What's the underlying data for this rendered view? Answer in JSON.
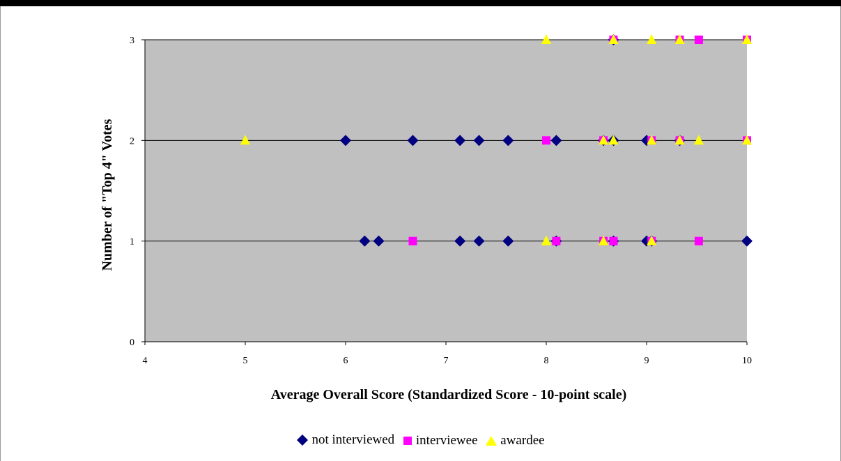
{
  "chart_data": {
    "type": "scatter",
    "xlabel": "Average Overall Score (Standardized Score - 10-point scale)",
    "ylabel": "Number of \"Top 4\" Votes",
    "xlim": [
      4,
      10
    ],
    "ylim": [
      0,
      3
    ],
    "x_ticks": [
      4,
      5,
      6,
      7,
      8,
      9,
      10
    ],
    "y_ticks": [
      0,
      1,
      2,
      3
    ],
    "grid": "horizontal major gridlines at y = 1, 2, 3",
    "plot_background": "#c0c0c0",
    "legend_position": "bottom",
    "series": [
      {
        "name": "not interviewed",
        "marker": "diamond",
        "color": "#000080",
        "points": [
          [
            6.19,
            1
          ],
          [
            6.33,
            1
          ],
          [
            7.14,
            1
          ],
          [
            7.33,
            1
          ],
          [
            7.62,
            1
          ],
          [
            8.1,
            1
          ],
          [
            8.67,
            1
          ],
          [
            9.0,
            1
          ],
          [
            9.05,
            1
          ],
          [
            10.0,
            1
          ],
          [
            6.0,
            2
          ],
          [
            6.67,
            2
          ],
          [
            7.14,
            2
          ],
          [
            7.33,
            2
          ],
          [
            7.62,
            2
          ],
          [
            8.1,
            2
          ],
          [
            8.57,
            2
          ],
          [
            8.67,
            2
          ],
          [
            9.0,
            2
          ],
          [
            9.33,
            2
          ],
          [
            8.67,
            3
          ]
        ]
      },
      {
        "name": "interviewee",
        "marker": "square",
        "color": "#ff00ff",
        "points": [
          [
            6.67,
            1
          ],
          [
            8.1,
            1
          ],
          [
            8.57,
            1
          ],
          [
            8.67,
            1
          ],
          [
            9.05,
            1
          ],
          [
            9.52,
            1
          ],
          [
            8.0,
            2
          ],
          [
            8.57,
            2
          ],
          [
            9.05,
            2
          ],
          [
            9.33,
            2
          ],
          [
            10.0,
            2
          ],
          [
            8.67,
            3
          ],
          [
            9.33,
            3
          ],
          [
            9.52,
            3
          ],
          [
            10.0,
            3
          ]
        ]
      },
      {
        "name": "awardee",
        "marker": "triangle",
        "color": "#ffff00",
        "points": [
          [
            8.0,
            1
          ],
          [
            8.57,
            1
          ],
          [
            9.05,
            1
          ],
          [
            5.0,
            2
          ],
          [
            8.57,
            2
          ],
          [
            8.67,
            2
          ],
          [
            9.05,
            2
          ],
          [
            9.33,
            2
          ],
          [
            9.52,
            2
          ],
          [
            10.0,
            2
          ],
          [
            8.0,
            3
          ],
          [
            8.67,
            3
          ],
          [
            9.05,
            3
          ],
          [
            9.33,
            3
          ],
          [
            10.0,
            3
          ]
        ]
      }
    ]
  }
}
